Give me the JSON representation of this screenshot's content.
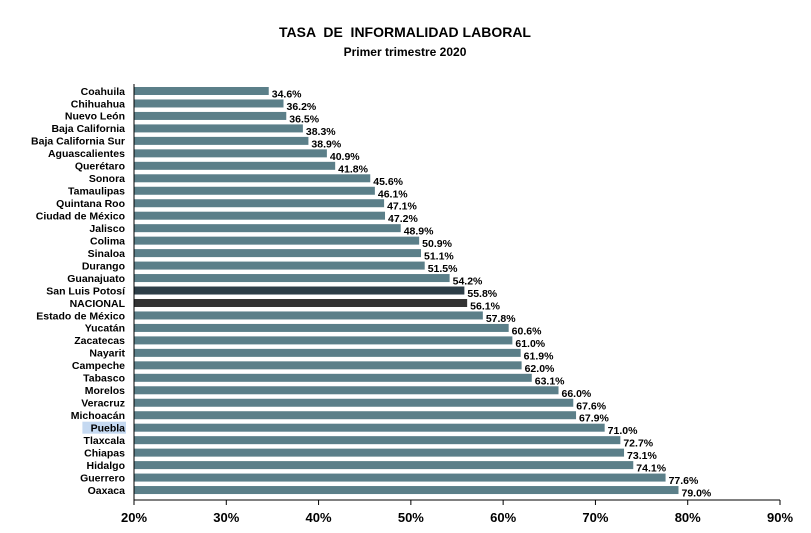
{
  "chart_data": {
    "type": "bar",
    "orientation": "horizontal",
    "title": "TASA  DE  INFORMALIDAD LABORAL",
    "subtitle": "Primer trimestre 2020",
    "xlabel": "",
    "ylabel": "",
    "xlim": [
      20,
      90
    ],
    "ticks": [
      "20%",
      "30%",
      "40%",
      "50%",
      "60%",
      "70%",
      "80%",
      "90%"
    ],
    "grid": false,
    "legend": "none",
    "categories": [
      "Coahuila",
      "Chihuahua",
      "Nuevo León",
      "Baja California",
      "Baja California Sur",
      "Aguascalientes",
      "Querétaro",
      "Sonora",
      "Tamaulipas",
      "Quintana Roo",
      "Ciudad de México",
      "Jalisco",
      "Colima",
      "Sinaloa",
      "Durango",
      "Guanajuato",
      "San Luis Potosí",
      "NACIONAL",
      "Estado de México",
      "Yucatán",
      "Zacatecas",
      "Nayarit",
      "Campeche",
      "Tabasco",
      "Morelos",
      "Veracruz",
      "Michoacán",
      "Puebla",
      "Tlaxcala",
      "Chiapas",
      "Hidalgo",
      "Guerrero",
      "Oaxaca"
    ],
    "values": [
      34.6,
      36.2,
      36.5,
      38.3,
      38.9,
      40.9,
      41.8,
      45.6,
      46.1,
      47.1,
      47.2,
      48.9,
      50.9,
      51.1,
      51.5,
      54.2,
      55.8,
      56.1,
      57.8,
      60.6,
      61.0,
      61.9,
      62.0,
      63.1,
      66.0,
      67.6,
      67.9,
      71.0,
      72.7,
      73.1,
      74.1,
      77.6,
      79.0
    ],
    "value_labels": [
      "34.6%",
      "36.2%",
      "36.5%",
      "38.3%",
      "38.9%",
      "40.9%",
      "41.8%",
      "45.6%",
      "46.1%",
      "47.1%",
      "47.2%",
      "48.9%",
      "50.9%",
      "51.1%",
      "51.5%",
      "54.2%",
      "55.8%",
      "56.1%",
      "57.8%",
      "60.6%",
      "61.0%",
      "61.9%",
      "62.0%",
      "63.1%",
      "66.0%",
      "67.6%",
      "67.9%",
      "71.0%",
      "72.7%",
      "73.1%",
      "74.1%",
      "77.6%",
      "79.0%"
    ],
    "colors": {
      "default": "#5B7F89",
      "highlight": "#2D3E48",
      "national": "#333333",
      "label_highlight_bg": "#C5D9F1"
    },
    "highlighted": [
      "San Luis Potosí"
    ],
    "national_category": "NACIONAL",
    "label_highlighted": [
      "Puebla"
    ]
  }
}
